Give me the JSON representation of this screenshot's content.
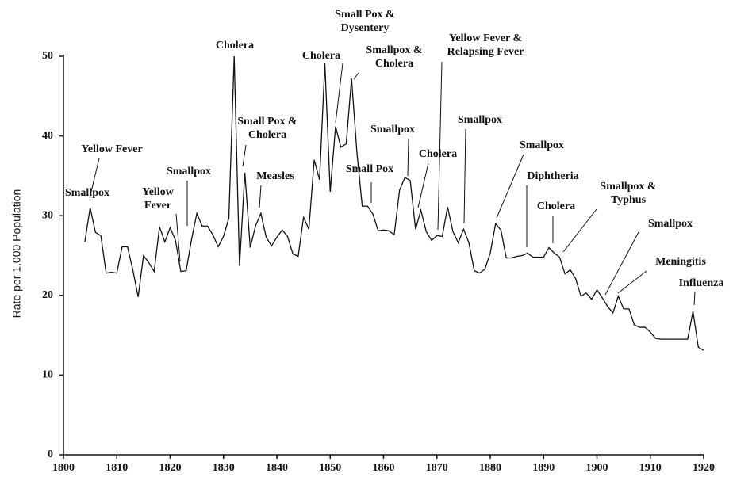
{
  "chart_data": {
    "type": "line",
    "y_label": "Rate per 1,000 Population",
    "x": [
      1804,
      1805,
      1806,
      1807,
      1808,
      1809,
      1810,
      1811,
      1812,
      1813,
      1814,
      1815,
      1816,
      1817,
      1818,
      1819,
      1820,
      1821,
      1822,
      1823,
      1824,
      1825,
      1826,
      1827,
      1828,
      1829,
      1830,
      1831,
      1832,
      1833,
      1834,
      1835,
      1836,
      1837,
      1838,
      1839,
      1840,
      1841,
      1842,
      1843,
      1844,
      1845,
      1846,
      1847,
      1848,
      1849,
      1850,
      1851,
      1852,
      1853,
      1854,
      1855,
      1856,
      1857,
      1858,
      1859,
      1860,
      1861,
      1862,
      1863,
      1864,
      1865,
      1866,
      1867,
      1868,
      1869,
      1870,
      1871,
      1872,
      1873,
      1874,
      1875,
      1876,
      1877,
      1878,
      1879,
      1880,
      1881,
      1882,
      1883,
      1884,
      1885,
      1886,
      1887,
      1888,
      1889,
      1890,
      1891,
      1892,
      1893,
      1894,
      1895,
      1896,
      1897,
      1898,
      1899,
      1900,
      1901,
      1902,
      1903,
      1904,
      1905,
      1906,
      1907,
      1908,
      1909,
      1910,
      1911,
      1912,
      1913,
      1914,
      1915,
      1916,
      1917,
      1918,
      1919,
      1920
    ],
    "series": [
      {
        "color": "#111111",
        "values": [
          26.7,
          31,
          27.9,
          27.5,
          22.8,
          22.9,
          22.8,
          26.1,
          26.1,
          23.2,
          19.8,
          25,
          24.1,
          23,
          28.6,
          26.7,
          28.5,
          26.9,
          23,
          23.1,
          27,
          30.3,
          28.7,
          28.7,
          27.6,
          26.1,
          27.4,
          29.7,
          50,
          23.7,
          35.4,
          26,
          28.7,
          30.3,
          27.3,
          26.2,
          27.3,
          28.2,
          27.4,
          25.2,
          24.9,
          29.8,
          28.3,
          37,
          34.5,
          49.1,
          33,
          41.2,
          38.6,
          39,
          47.2,
          38,
          31.2,
          31.2,
          30.2,
          28.1,
          28.2,
          28.1,
          27.6,
          33.2,
          34.8,
          34.4,
          28.3,
          30.7,
          28,
          26.9,
          27.5,
          27.4,
          31.1,
          28,
          26.6,
          28.3,
          26.6,
          23.1,
          22.8,
          23.3,
          25.3,
          29,
          28.2,
          24.7,
          24.7,
          24.9,
          25,
          25.3,
          24.8,
          24.8,
          24.8,
          26,
          25.3,
          24.8,
          22.7,
          23.2,
          22.1,
          19.9,
          20.3,
          19.5,
          20.7,
          19.7,
          18.6,
          17.8,
          19.9,
          18.3,
          18.3,
          16.3,
          16,
          16,
          15.4,
          14.6,
          14.5,
          14.5,
          14.5,
          14.5,
          14.5,
          14.5,
          18,
          13.5,
          13.1
        ]
      }
    ],
    "xlim": [
      1800,
      1920
    ],
    "xticks": [
      1800,
      1810,
      1820,
      1830,
      1840,
      1850,
      1860,
      1870,
      1880,
      1890,
      1900,
      1910,
      1920
    ],
    "ylim": [
      0,
      50
    ],
    "yticks": [
      0,
      10,
      20,
      30,
      40,
      50
    ],
    "annotations": [
      [
        "Smallpox"
      ],
      [
        "Yellow Fever"
      ],
      [
        "Yellow",
        "Fever"
      ],
      [
        "Smallpox"
      ],
      [
        "Cholera"
      ],
      [
        "Small Pox &",
        "Cholera"
      ],
      [
        "Measles"
      ],
      [
        "Cholera"
      ],
      [
        "Small Pox &",
        "Dysentery"
      ],
      [
        "Smallpox &",
        "Cholera"
      ],
      [
        "Smallpox"
      ],
      [
        "Small Pox"
      ],
      [
        "Cholera"
      ],
      [
        "Yellow Fever &",
        "Relapsing Fever"
      ],
      [
        "Smallpox"
      ],
      [
        "Smallpox"
      ],
      [
        "Diphtheria"
      ],
      [
        "Cholera"
      ],
      [
        "Smallpox &",
        "Typhus"
      ],
      [
        "Smallpox"
      ],
      [
        "Meningitis"
      ],
      [
        "Influenza"
      ]
    ]
  }
}
